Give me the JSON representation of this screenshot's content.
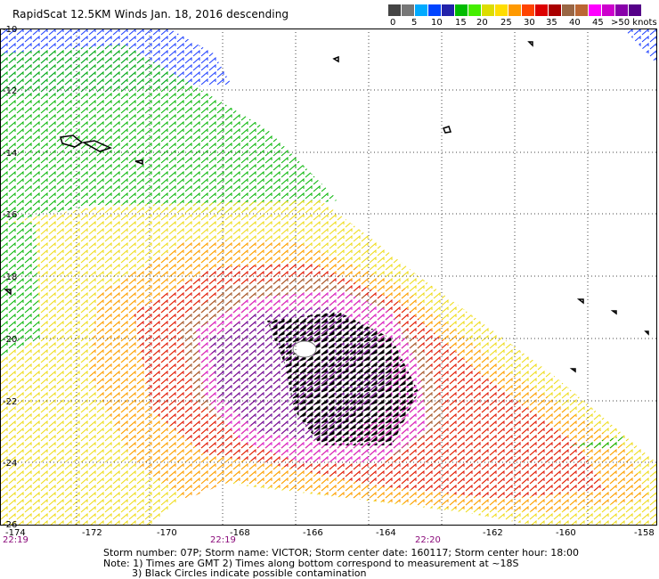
{
  "title": "RapidScat 12.5KM Winds Jan. 18, 2016 descending",
  "legend": {
    "colors": [
      "#444444",
      "#777777",
      "#00aaff",
      "#0044ff",
      "#2222aa",
      "#00bb00",
      "#44ee00",
      "#dddd00",
      "#ffdd00",
      "#ff9900",
      "#ff4400",
      "#dd0000",
      "#aa0000",
      "#996644",
      "#bb6633",
      "#ff00ff",
      "#cc00cc",
      "#8800aa",
      "#550088"
    ],
    "labels": [
      "0",
      "5",
      "10",
      "15",
      "20",
      "25",
      "30",
      "35",
      "40",
      "45",
      ">50 knots"
    ]
  },
  "axes": {
    "x_ticks": [
      "-174",
      "-172",
      "-170",
      "-168",
      "-166",
      "-164",
      "-162",
      "-160",
      "-158"
    ],
    "y_ticks": [
      "-10",
      "-12",
      "-14",
      "-16",
      "-18",
      "-20",
      "-22",
      "-24",
      "-26"
    ]
  },
  "times": [
    "22:19",
    "22:19",
    "22:20"
  ],
  "footer": {
    "line1": "Storm number: 07P;  Storm name: VICTOR;  Storm center date: 160117;  Storm center hour: 18:00",
    "line2": "Note: 1) Times are GMT  2) Times along bottom correspond to measurement at ~18S",
    "line3": "3) Black Circles indicate possible contamination"
  }
}
